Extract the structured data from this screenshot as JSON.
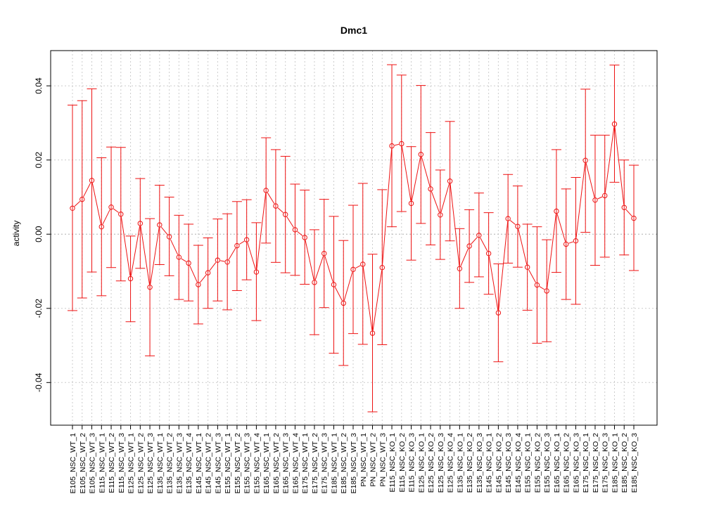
{
  "chart_data": {
    "type": "line",
    "title": "Dmc1",
    "xlabel": "",
    "ylabel": "activity",
    "ylim": [
      -0.0515,
      0.0495
    ],
    "yticks": [
      -0.04,
      -0.02,
      0.0,
      0.02,
      0.04
    ],
    "ytick_labels": [
      "-0.04",
      "-0.02",
      "0.00",
      "0.02",
      "0.04"
    ],
    "grid": true,
    "reference_line": 0,
    "colors": {
      "series": "#ee1111",
      "grid": "#cccccc",
      "frame": "#000000"
    },
    "categories": [
      "E105_NSC_WT_1",
      "E105_NSC_WT_2",
      "E105_NSC_WT_3",
      "E115_NSC_WT_1",
      "E115_NSC_WT_2",
      "E115_NSC_WT_3",
      "E125_NSC_WT_1",
      "E125_NSC_WT_2",
      "E125_NSC_WT_3",
      "E135_NSC_WT_1",
      "E135_NSC_WT_2",
      "E135_NSC_WT_3",
      "E135_NSC_WT_4",
      "E145_NSC_WT_1",
      "E145_NSC_WT_2",
      "E145_NSC_WT_3",
      "E155_NSC_WT_1",
      "E155_NSC_WT_2",
      "E155_NSC_WT_3",
      "E155_NSC_WT_4",
      "E165_NSC_WT_1",
      "E165_NSC_WT_2",
      "E165_NSC_WT_3",
      "E165_NSC_WT_4",
      "E175_NSC_WT_1",
      "E175_NSC_WT_2",
      "E175_NSC_WT_3",
      "E185_NSC_WT_1",
      "E185_NSC_WT_2",
      "E185_NSC_WT_3",
      "PN_NSC_WT_1",
      "PN_NSC_WT_2",
      "PN_NSC_WT_3",
      "E115_NSC_KO_1",
      "E115_NSC_KO_2",
      "E115_NSC_KO_3",
      "E125_NSC_KO_1",
      "E125_NSC_KO_2",
      "E125_NSC_KO_3",
      "E125_NSC_KO_4",
      "E135_NSC_KO_1",
      "E135_NSC_KO_2",
      "E135_NSC_KO_3",
      "E145_NSC_KO_1",
      "E145_NSC_KO_2",
      "E145_NSC_KO_3",
      "E145_NSC_KO_4",
      "E155_NSC_KO_1",
      "E155_NSC_KO_2",
      "E155_NSC_KO_3",
      "E165_NSC_KO_1",
      "E165_NSC_KO_2",
      "E165_NSC_KO_3",
      "E175_NSC_KO_1",
      "E175_NSC_KO_2",
      "E175_NSC_KO_3",
      "E185_NSC_KO_1",
      "E185_NSC_KO_2",
      "E185_NSC_KO_3"
    ],
    "values": [
      0.007,
      0.0094,
      0.0145,
      0.002,
      0.0073,
      0.0054,
      -0.012,
      0.0029,
      -0.0143,
      0.0025,
      -0.0007,
      -0.0062,
      -0.0078,
      -0.0136,
      -0.0104,
      -0.007,
      -0.0075,
      -0.0031,
      -0.0015,
      -0.0102,
      0.0118,
      0.0076,
      0.0053,
      0.0012,
      -0.0009,
      -0.013,
      -0.0052,
      -0.0136,
      -0.0186,
      -0.0095,
      -0.0081,
      -0.0267,
      -0.009,
      0.0238,
      0.0244,
      0.0083,
      0.0215,
      0.0122,
      0.0052,
      0.0143,
      -0.0093,
      -0.0032,
      -0.0003,
      -0.0052,
      -0.0212,
      0.0042,
      0.0021,
      -0.0089,
      -0.0137,
      -0.0153,
      0.0062,
      -0.0027,
      -0.0018,
      0.0199,
      0.0092,
      0.0104,
      0.0297,
      0.0072,
      0.0043
    ],
    "upper": [
      0.0348,
      0.036,
      0.0392,
      0.0206,
      0.0235,
      0.0234,
      -0.0005,
      0.015,
      0.0042,
      0.0132,
      0.01,
      0.0051,
      0.0027,
      -0.003,
      -0.001,
      0.0041,
      0.0055,
      0.0088,
      0.0093,
      0.0031,
      0.026,
      0.0228,
      0.021,
      0.0135,
      0.0119,
      0.0012,
      0.0094,
      0.0048,
      -0.0017,
      0.0078,
      0.0137,
      -0.0054,
      0.012,
      0.0457,
      0.0429,
      0.0236,
      0.0401,
      0.0274,
      0.0173,
      0.0304,
      0.0015,
      0.0066,
      0.0111,
      0.0058,
      -0.008,
      0.0161,
      0.013,
      0.0027,
      0.002,
      -0.0015,
      0.0228,
      0.0122,
      0.0153,
      0.0391,
      0.0267,
      0.0267,
      0.0456,
      0.02,
      0.0186
    ],
    "lower": [
      -0.0206,
      -0.0172,
      -0.0102,
      -0.0166,
      -0.009,
      -0.0126,
      -0.0236,
      -0.0092,
      -0.0328,
      -0.0082,
      -0.0112,
      -0.0176,
      -0.018,
      -0.0242,
      -0.02,
      -0.018,
      -0.0204,
      -0.0152,
      -0.0123,
      -0.0233,
      -0.0024,
      -0.0076,
      -0.0104,
      -0.0111,
      -0.0135,
      -0.0271,
      -0.0198,
      -0.0321,
      -0.0354,
      -0.0268,
      -0.0297,
      -0.0479,
      -0.0298,
      0.002,
      0.0061,
      -0.007,
      0.0029,
      -0.0029,
      -0.0068,
      -0.0018,
      -0.02,
      -0.013,
      -0.0115,
      -0.0162,
      -0.0344,
      -0.0078,
      -0.0089,
      -0.0205,
      -0.0294,
      -0.029,
      -0.0103,
      -0.0176,
      -0.0189,
      0.0005,
      -0.0084,
      -0.0062,
      0.014,
      -0.0056,
      -0.0098
    ]
  }
}
